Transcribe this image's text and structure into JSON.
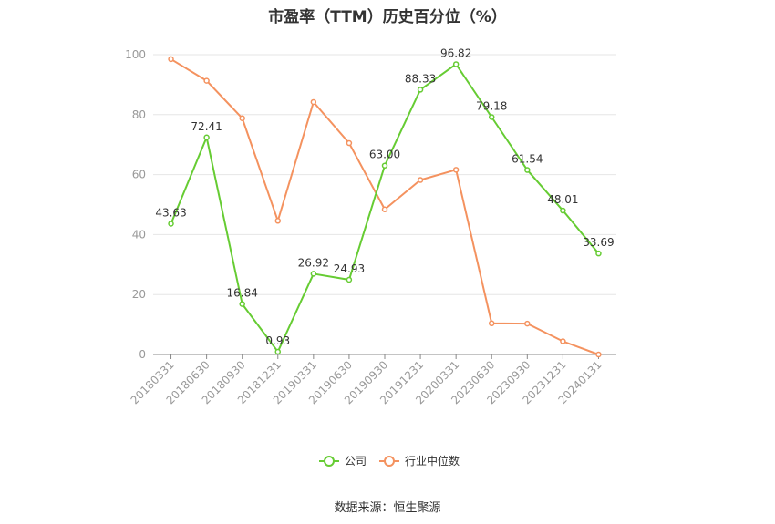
{
  "chart_data": {
    "type": "line",
    "title": "市盈率（TTM）历史百分位（%）",
    "source": "数据来源：恒生聚源",
    "categories": [
      "20180331",
      "20180630",
      "20180930",
      "20181231",
      "20190331",
      "20190630",
      "20190930",
      "20191231",
      "20200331",
      "20230630",
      "20230930",
      "20231231",
      "20240131"
    ],
    "ylim": [
      0,
      100
    ],
    "yticks": [
      0,
      20,
      40,
      60,
      80,
      100
    ],
    "series": [
      {
        "name": "公司",
        "color": "#66cc33",
        "values": [
          43.63,
          72.41,
          16.84,
          0.93,
          26.92,
          24.93,
          63.0,
          88.33,
          96.82,
          79.18,
          61.54,
          48.01,
          33.69
        ],
        "labels": [
          "43.63",
          "72.41",
          "16.84",
          "0.93",
          "26.92",
          "24.93",
          "63.00",
          "88.33",
          "96.82",
          "79.18",
          "61.54",
          "48.01",
          "33.69"
        ]
      },
      {
        "name": "行业中位数",
        "color": "#f4925f",
        "values": [
          98.5,
          91.3,
          78.8,
          44.6,
          84.2,
          70.5,
          48.4,
          58.2,
          61.6,
          10.4,
          10.3,
          4.4,
          0.0
        ]
      }
    ],
    "legend": "bottom-center",
    "grid": true
  }
}
